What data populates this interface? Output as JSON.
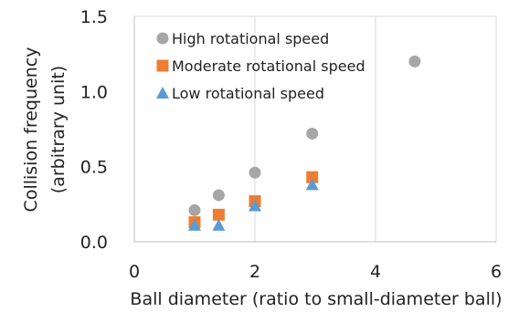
{
  "chart_data": {
    "type": "scatter",
    "xlabel": "Ball diameter (ratio to small-diameter ball)",
    "ylabel": [
      "Collision frequency",
      "(arbitrary unit)"
    ],
    "xlim": [
      0,
      6
    ],
    "ylim": [
      0,
      1.5
    ],
    "x_ticks": [
      "0",
      "2",
      "4",
      "6"
    ],
    "y_ticks": [
      "0.0",
      "0.5",
      "1.0",
      "1.5"
    ],
    "grid": "vertical",
    "legend_position": "top-left",
    "series": [
      {
        "name": "High rotational speed",
        "marker": "circle",
        "color": "#a6a6a6",
        "points": [
          [
            1.0,
            0.21
          ],
          [
            1.4,
            0.31
          ],
          [
            2.0,
            0.46
          ],
          [
            2.95,
            0.72
          ],
          [
            4.65,
            1.2
          ]
        ]
      },
      {
        "name": "Moderate rotational speed",
        "marker": "square",
        "color": "#ed7d31",
        "points": [
          [
            1.0,
            0.13
          ],
          [
            1.4,
            0.18
          ],
          [
            2.0,
            0.27
          ],
          [
            2.95,
            0.43
          ]
        ]
      },
      {
        "name": "Low rotational speed",
        "marker": "triangle",
        "color": "#5b9bd5",
        "points": [
          [
            1.0,
            0.11
          ],
          [
            1.4,
            0.11
          ],
          [
            2.0,
            0.24
          ],
          [
            2.95,
            0.38
          ]
        ]
      }
    ]
  }
}
